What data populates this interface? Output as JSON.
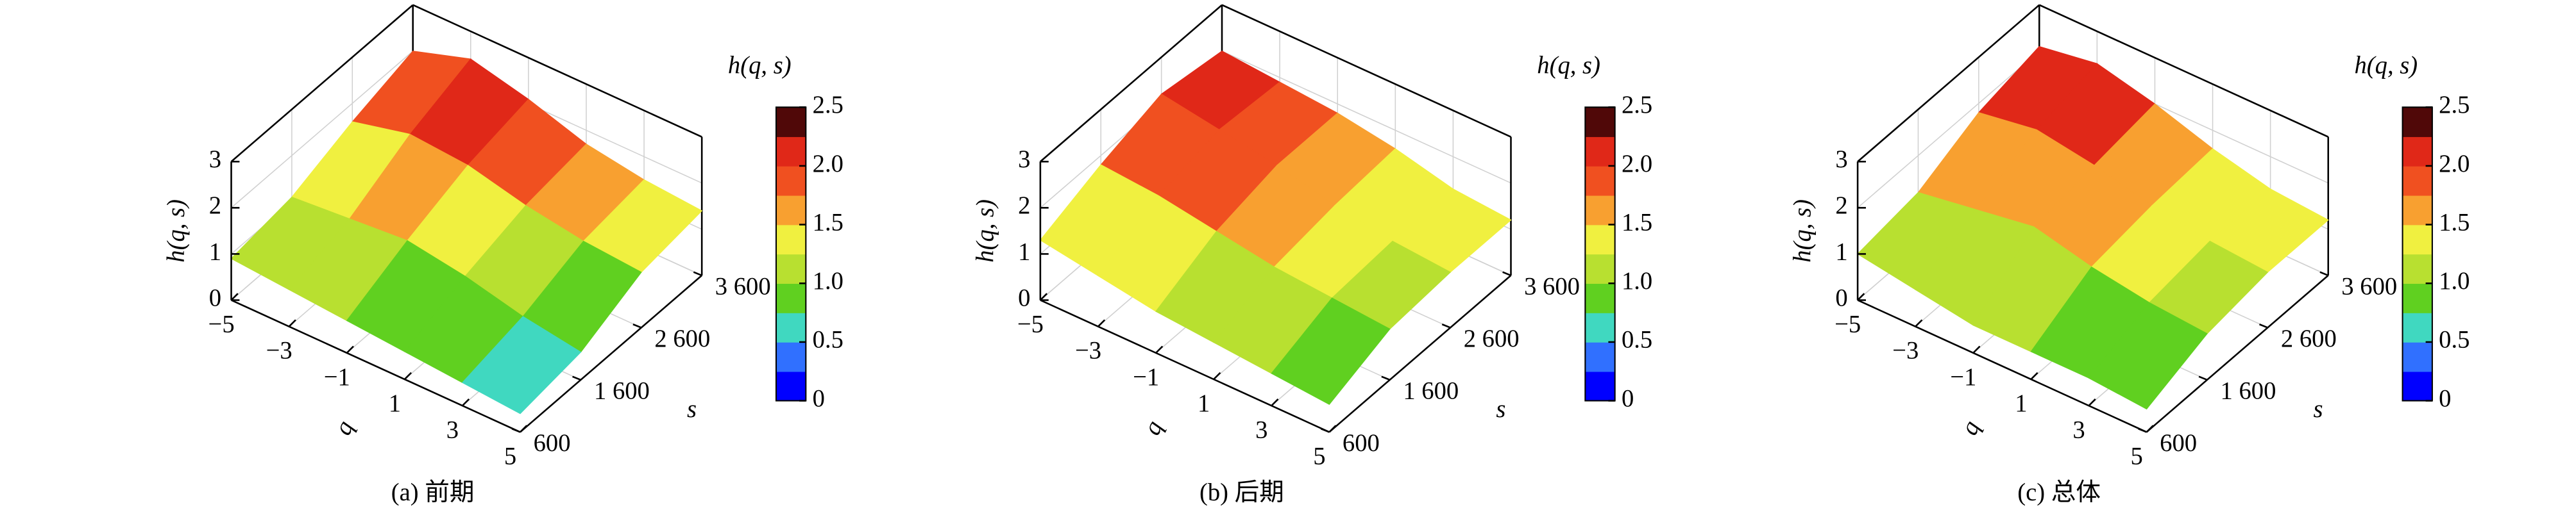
{
  "chart_data": [
    {
      "type": "surface",
      "title": "(a) 前期",
      "xlabel": "q",
      "ylabel": "s",
      "zlabel": "h(q, s)",
      "colorbar_label": "h(q, s)",
      "x": [
        -5,
        -3,
        -1,
        1,
        3,
        5
      ],
      "y": [
        600,
        1600,
        2600,
        3600
      ],
      "values": [
        [
          0.9,
          1.1,
          1.6,
          2.0
        ],
        [
          0.8,
          1.2,
          1.9,
          2.4
        ],
        [
          0.7,
          1.3,
          1.8,
          2.1
        ],
        [
          0.6,
          1.1,
          1.5,
          1.7
        ],
        [
          0.5,
          0.8,
          1.3,
          1.5
        ],
        [
          0.4,
          0.6,
          1.2,
          1.4
        ]
      ],
      "xlim": [
        -5,
        5
      ],
      "xticks": [
        {
          "value": -5,
          "label": "−5"
        },
        {
          "value": -3,
          "label": "−3"
        },
        {
          "value": -1,
          "label": "−1"
        },
        1,
        3,
        5
      ],
      "ylim": [
        600,
        3600
      ],
      "yticks": [
        600,
        {
          "value": 1600,
          "label": "1 600"
        },
        {
          "value": 2600,
          "label": "2 600"
        },
        {
          "value": 3600,
          "label": "3 600"
        }
      ],
      "zlim": [
        0,
        3
      ],
      "zticks": [
        0,
        1,
        2,
        3
      ],
      "clim": [
        0,
        2.5
      ],
      "cticks": [
        0,
        0.5,
        {
          "value": 1,
          "label": "1.0"
        },
        1.5,
        {
          "value": 2,
          "label": "2.0"
        },
        2.5
      ],
      "colormap": [
        "#0000ff",
        "#3070ff",
        "#40d8c0",
        "#60d020",
        "#b8e030",
        "#f0f040",
        "#f8a030",
        "#f05020",
        "#e02818",
        "#500808"
      ],
      "grid": true
    },
    {
      "type": "surface",
      "title": "(b) 后期",
      "xlabel": "q",
      "ylabel": "s",
      "zlabel": "h(q, s)",
      "colorbar_label": "h(q, s)",
      "x": [
        -5,
        -3,
        -1,
        1,
        3,
        5
      ],
      "y": [
        600,
        1600,
        2600,
        3600
      ],
      "values": [
        [
          1.3,
          1.8,
          2.2,
          2.0
        ],
        [
          1.1,
          1.7,
          2.0,
          1.9
        ],
        [
          0.9,
          1.5,
          1.8,
          1.8
        ],
        [
          0.8,
          1.3,
          1.5,
          1.6
        ],
        [
          0.7,
          1.2,
          1.3,
          1.3
        ],
        [
          0.6,
          1.1,
          1.2,
          1.2
        ]
      ],
      "xlim": [
        -5,
        5
      ],
      "xticks": [
        {
          "value": -5,
          "label": "−5"
        },
        {
          "value": -3,
          "label": "−3"
        },
        {
          "value": -1,
          "label": "−1"
        },
        1,
        3,
        5
      ],
      "ylim": [
        600,
        3600
      ],
      "yticks": [
        600,
        {
          "value": 1600,
          "label": "1 600"
        },
        {
          "value": 2600,
          "label": "2 600"
        },
        {
          "value": 3600,
          "label": "3 600"
        }
      ],
      "zlim": [
        0,
        3
      ],
      "zticks": [
        0,
        1,
        2,
        3
      ],
      "clim": [
        0,
        2.5
      ],
      "cticks": [
        0,
        0.5,
        {
          "value": 1,
          "label": "1.0"
        },
        1.5,
        {
          "value": 2,
          "label": "2.0"
        },
        2.5
      ],
      "colormap": [
        "#0000ff",
        "#3070ff",
        "#40d8c0",
        "#60d020",
        "#b8e030",
        "#f0f040",
        "#f8a030",
        "#f05020",
        "#e02818",
        "#500808"
      ],
      "grid": true
    },
    {
      "type": "surface",
      "title": "(c) 总体",
      "xlabel": "q",
      "ylabel": "s",
      "zlabel": "h(q, s)",
      "colorbar_label": "h(q, s)",
      "x": [
        -5,
        -3,
        -1,
        1,
        3,
        5
      ],
      "y": [
        600,
        1600,
        2600,
        3600
      ],
      "values": [
        [
          1.0,
          1.2,
          1.8,
          2.1
        ],
        [
          0.8,
          1.4,
          2.0,
          2.3
        ],
        [
          0.6,
          1.6,
          1.8,
          2.0
        ],
        [
          0.6,
          1.3,
          1.5,
          1.6
        ],
        [
          0.6,
          1.1,
          1.3,
          1.3
        ],
        [
          0.5,
          1.0,
          1.2,
          1.2
        ]
      ],
      "xlim": [
        -5,
        5
      ],
      "xticks": [
        {
          "value": -5,
          "label": "−5"
        },
        {
          "value": -3,
          "label": "−3"
        },
        {
          "value": -1,
          "label": "−1"
        },
        1,
        3,
        5
      ],
      "ylim": [
        600,
        3600
      ],
      "yticks": [
        600,
        {
          "value": 1600,
          "label": "1 600"
        },
        {
          "value": 2600,
          "label": "2 600"
        },
        {
          "value": 3600,
          "label": "3 600"
        }
      ],
      "zlim": [
        0,
        3
      ],
      "zticks": [
        0,
        1,
        2,
        3
      ],
      "clim": [
        0,
        2.5
      ],
      "cticks": [
        0,
        0.5,
        {
          "value": 1,
          "label": "1.0"
        },
        1.5,
        {
          "value": 2,
          "label": "2.0"
        },
        2.5
      ],
      "colormap": [
        "#0000ff",
        "#3070ff",
        "#40d8c0",
        "#60d020",
        "#b8e030",
        "#f0f040",
        "#f8a030",
        "#f05020",
        "#e02818",
        "#500808"
      ],
      "grid": true
    }
  ]
}
